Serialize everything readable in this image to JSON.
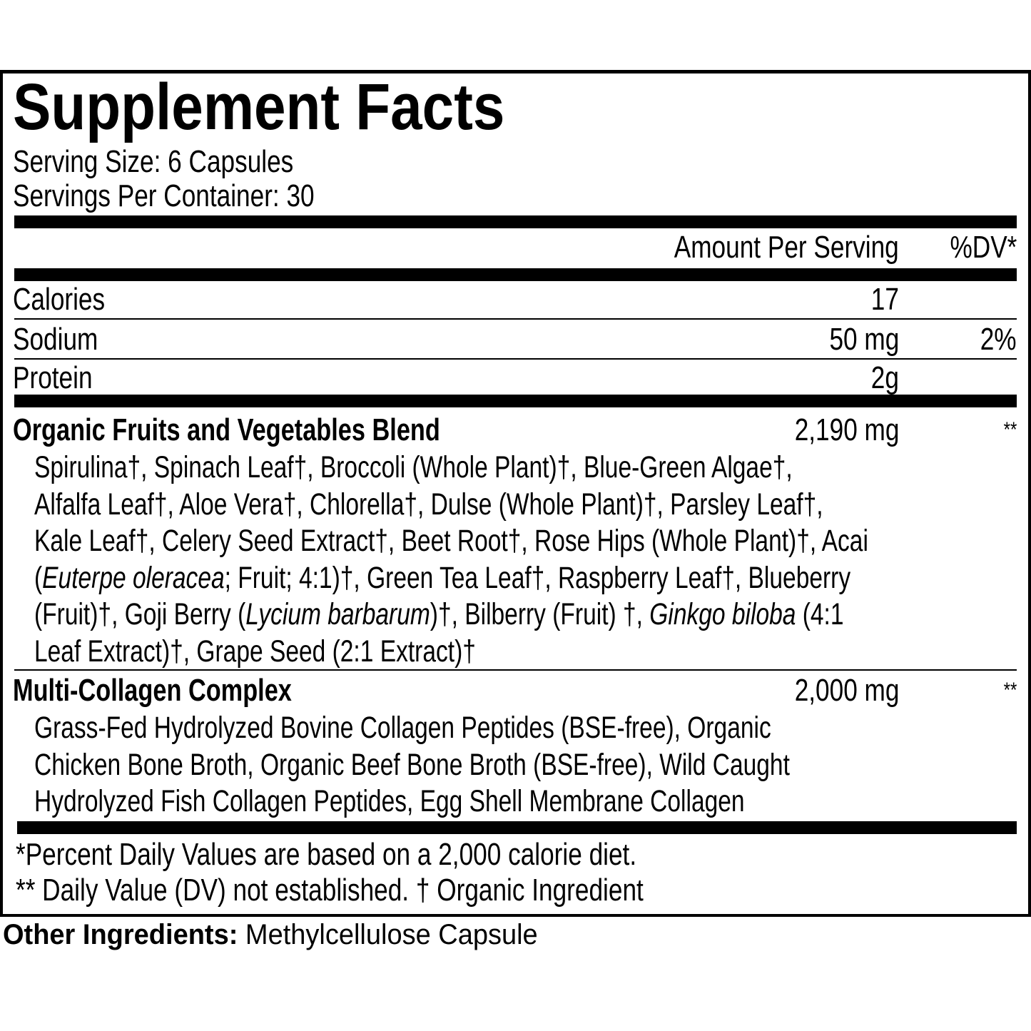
{
  "label": {
    "title": "Supplement Facts",
    "serving_size": "Serving Size: 6 Capsules",
    "servings_per_container": "Servings Per Container: 30",
    "header": {
      "amount": "Amount Per Serving",
      "dv": "%DV*"
    },
    "nutrients": [
      {
        "name": "Calories",
        "amount": "17",
        "dv": ""
      },
      {
        "name": "Sodium",
        "amount": "50 mg",
        "dv": "2%"
      },
      {
        "name": "Protein",
        "amount": "2g",
        "dv": ""
      }
    ],
    "blends": [
      {
        "name": "Organic Fruits and Vegetables Blend",
        "amount": "2,190 mg",
        "dv": "**",
        "lines": [
          [
            {
              "t": "Spirulina†, Spinach Leaf†, Broccoli (Whole Plant)†, Blue-Green Algae†,",
              "i": false
            }
          ],
          [
            {
              "t": "Alfalfa Leaf†, Aloe Vera†, Chlorella†, Dulse (Whole Plant)†, Parsley Leaf†,",
              "i": false
            }
          ],
          [
            {
              "t": "Kale Leaf†, Celery Seed Extract†, Beet Root†, Rose Hips (Whole Plant)†, Acai",
              "i": false
            }
          ],
          [
            {
              "t": "(",
              "i": false
            },
            {
              "t": "Euterpe oleracea",
              "i": true
            },
            {
              "t": "; Fruit; 4:1)†, Green Tea Leaf†, Raspberry Leaf†, Blueberry",
              "i": false
            }
          ],
          [
            {
              "t": "(Fruit)†, Goji Berry (",
              "i": false
            },
            {
              "t": "Lycium barbarum",
              "i": true
            },
            {
              "t": ")†, Bilberry (Fruit) †, ",
              "i": false
            },
            {
              "t": "Ginkgo biloba",
              "i": true
            },
            {
              "t": " (4:1",
              "i": false
            }
          ],
          [
            {
              "t": "Leaf Extract)†, Grape Seed (2:1 Extract)†",
              "i": false
            }
          ]
        ]
      },
      {
        "name": "Multi-Collagen Complex",
        "amount": "2,000 mg",
        "dv": "**",
        "lines": [
          [
            {
              "t": "Grass-Fed Hydrolyzed Bovine Collagen Peptides (BSE-free), Organic",
              "i": false
            }
          ],
          [
            {
              "t": "Chicken Bone Broth, Organic Beef Bone Broth (BSE-free), Wild Caught",
              "i": false
            }
          ],
          [
            {
              "t": "Hydrolyzed Fish Collagen Peptides, Egg Shell Membrane Collagen",
              "i": false
            }
          ]
        ]
      }
    ],
    "footnotes": [
      "*Percent Daily Values are based on a 2,000 calorie diet.",
      "** Daily Value (DV) not established. † Organic Ingredient"
    ]
  },
  "other_ingredients": {
    "label": "Other Ingredients:",
    "value": " Methylcellulose Capsule"
  }
}
